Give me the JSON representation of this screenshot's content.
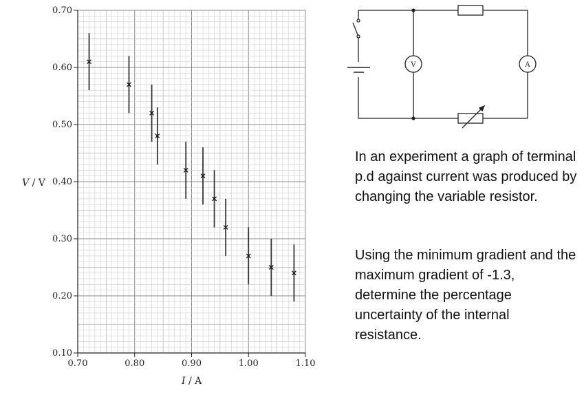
{
  "chart_data": {
    "type": "scatter",
    "ylabel_italic": "V",
    "ylabel_unit": " / V",
    "xlabel_italic": "I",
    "xlabel_unit": " / A",
    "xlim": [
      0.7,
      1.1
    ],
    "ylim": [
      0.1,
      0.7
    ],
    "x_ticks": [
      "0.70",
      "0.80",
      "0.90",
      "1.00",
      "1.10"
    ],
    "y_ticks": [
      "0.10",
      "0.20",
      "0.30",
      "0.40",
      "0.50",
      "0.60",
      "0.70"
    ],
    "grid": true,
    "points": [
      {
        "x": 0.72,
        "y": 0.61,
        "err": 0.05
      },
      {
        "x": 0.79,
        "y": 0.57,
        "err": 0.05
      },
      {
        "x": 0.83,
        "y": 0.52,
        "err": 0.05
      },
      {
        "x": 0.84,
        "y": 0.48,
        "err": 0.05
      },
      {
        "x": 0.89,
        "y": 0.42,
        "err": 0.05
      },
      {
        "x": 0.92,
        "y": 0.41,
        "err": 0.05
      },
      {
        "x": 0.94,
        "y": 0.37,
        "err": 0.05
      },
      {
        "x": 0.96,
        "y": 0.32,
        "err": 0.05
      },
      {
        "x": 1.0,
        "y": 0.27,
        "err": 0.05
      },
      {
        "x": 1.04,
        "y": 0.25,
        "err": 0.05
      },
      {
        "x": 1.08,
        "y": 0.24,
        "err": 0.05
      }
    ]
  },
  "circuit": {
    "voltmeter_label": "V",
    "ammeter_label": "A"
  },
  "question": {
    "paragraph1": "In an experiment a graph of terminal p.d against current was produced by changing the variable resistor.",
    "paragraph2": "Using the minimum gradient and the maximum gradient of -1.3, determine the percentage uncertainty of the internal resistance."
  }
}
